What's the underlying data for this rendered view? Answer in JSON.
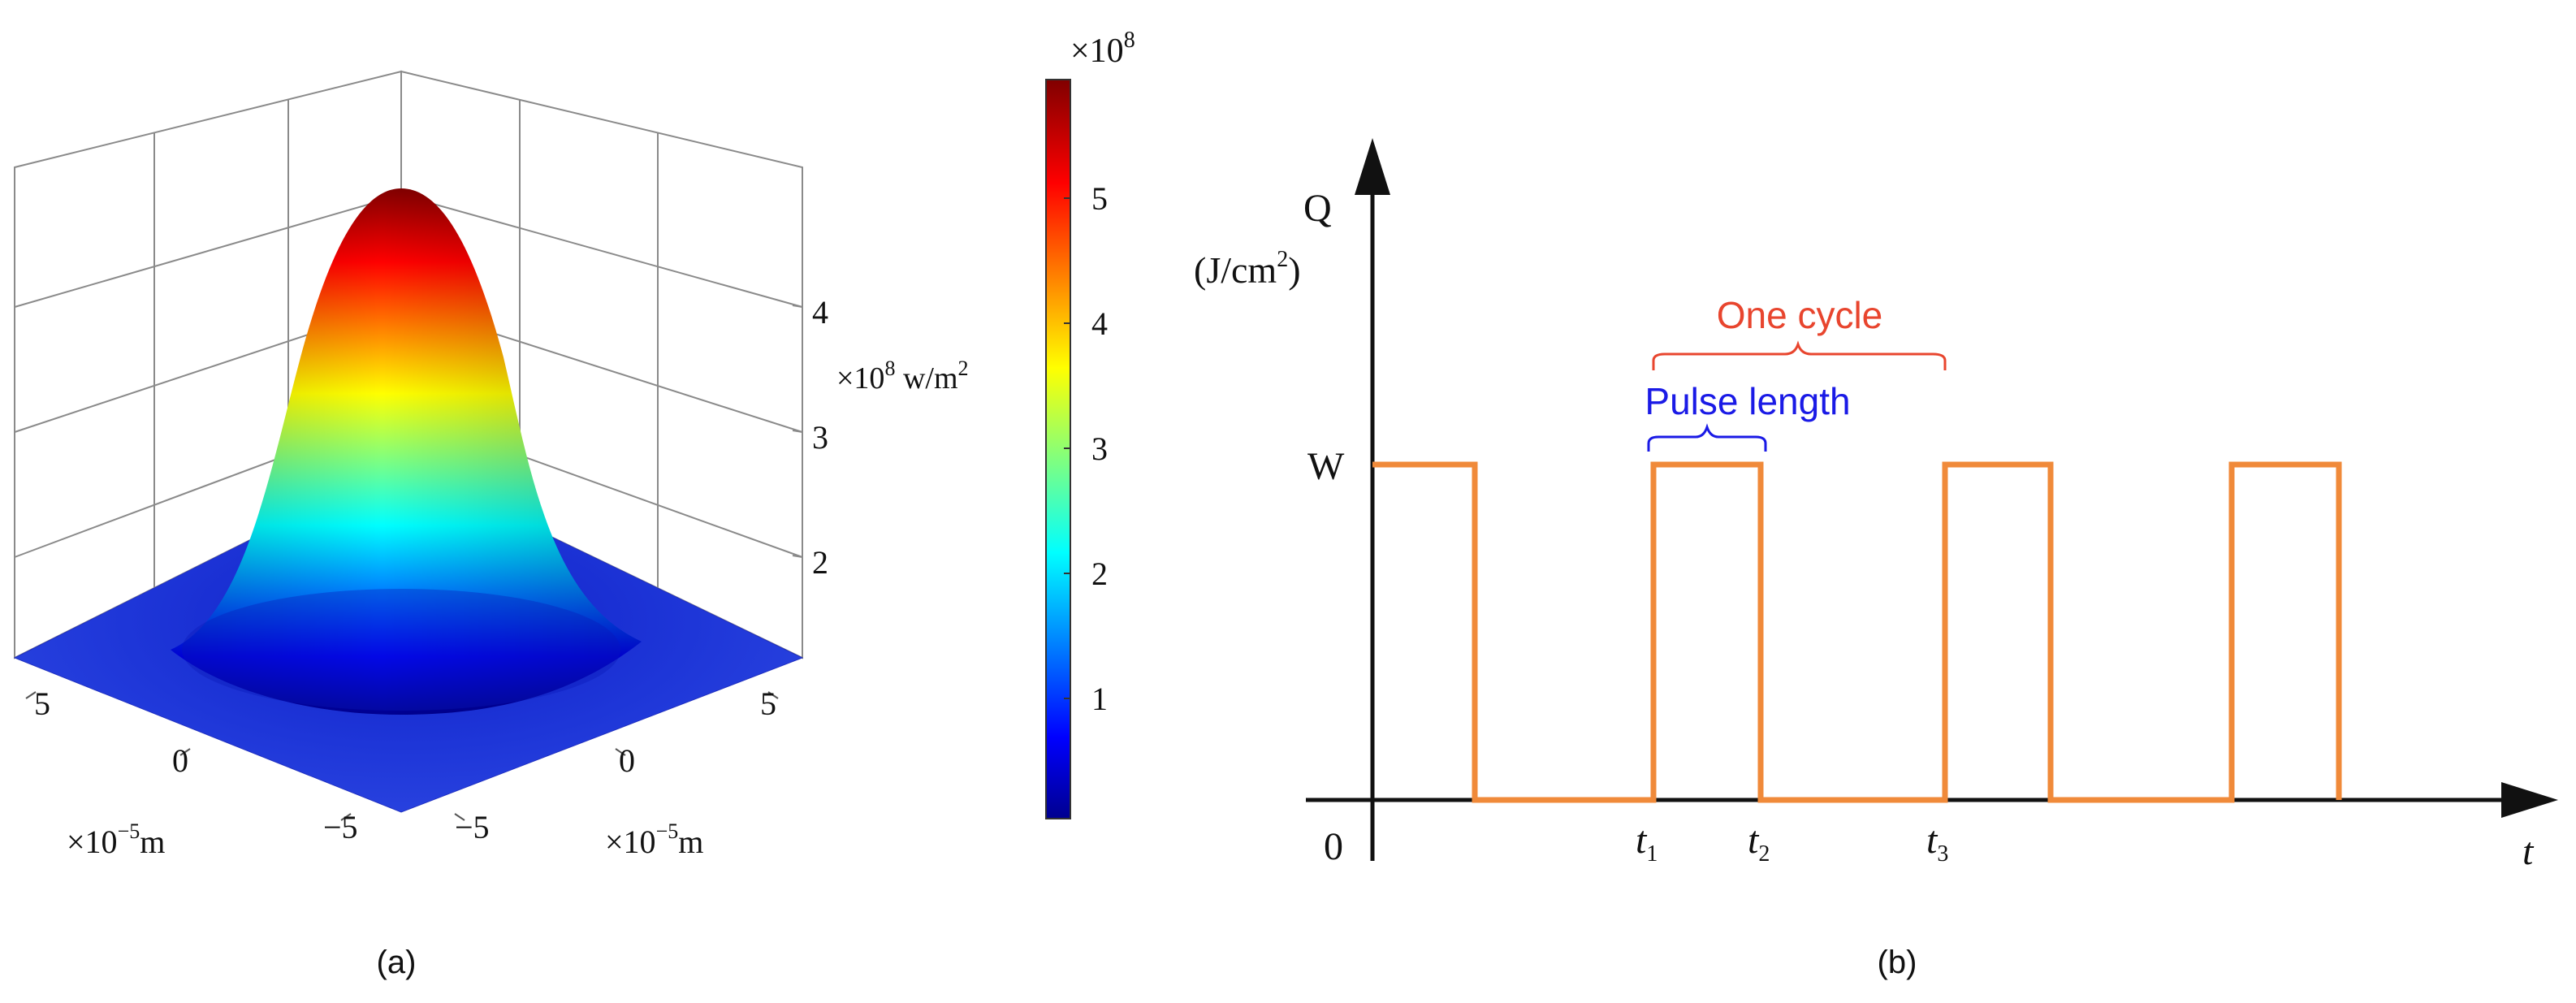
{
  "panel_a": {
    "caption": "(a)",
    "colorbar": {
      "exponent_label": "×10",
      "exponent_sup": "8",
      "ticks": [
        "1",
        "2",
        "3",
        "4",
        "5"
      ],
      "colormap": "jet"
    },
    "z_axis": {
      "ticks": [
        "2",
        "3",
        "4"
      ],
      "unit_prefix": "×10",
      "unit_sup": "8",
      "unit_suffix": " w/m",
      "unit_suffix_sup": "2"
    },
    "left_axis": {
      "ticks": [
        "5",
        "0",
        "−5"
      ],
      "unit_prefix": "×10",
      "unit_sup": "−5",
      "unit_suffix": "m"
    },
    "right_axis": {
      "ticks": [
        "5",
        "0",
        "−5"
      ],
      "unit_prefix": "×10",
      "unit_sup": "−5",
      "unit_suffix": "m"
    }
  },
  "panel_b": {
    "caption": "(b)",
    "y_label": "Q",
    "y_unit": "(J/cm",
    "y_unit_sup": "2",
    "y_unit_close": ")",
    "level_label": "W",
    "origin_label": "0",
    "x_label": "t",
    "time_labels": [
      {
        "base": "t",
        "sub": "1"
      },
      {
        "base": "t",
        "sub": "2"
      },
      {
        "base": "t",
        "sub": "3"
      }
    ],
    "pulse_length_label": "Pulse length",
    "one_cycle_label": "One cycle",
    "colors": {
      "pulse": "#F08A3A",
      "one_cycle": "#E8452E",
      "pulse_length": "#1A1AE6",
      "axis": "#111111"
    }
  }
}
